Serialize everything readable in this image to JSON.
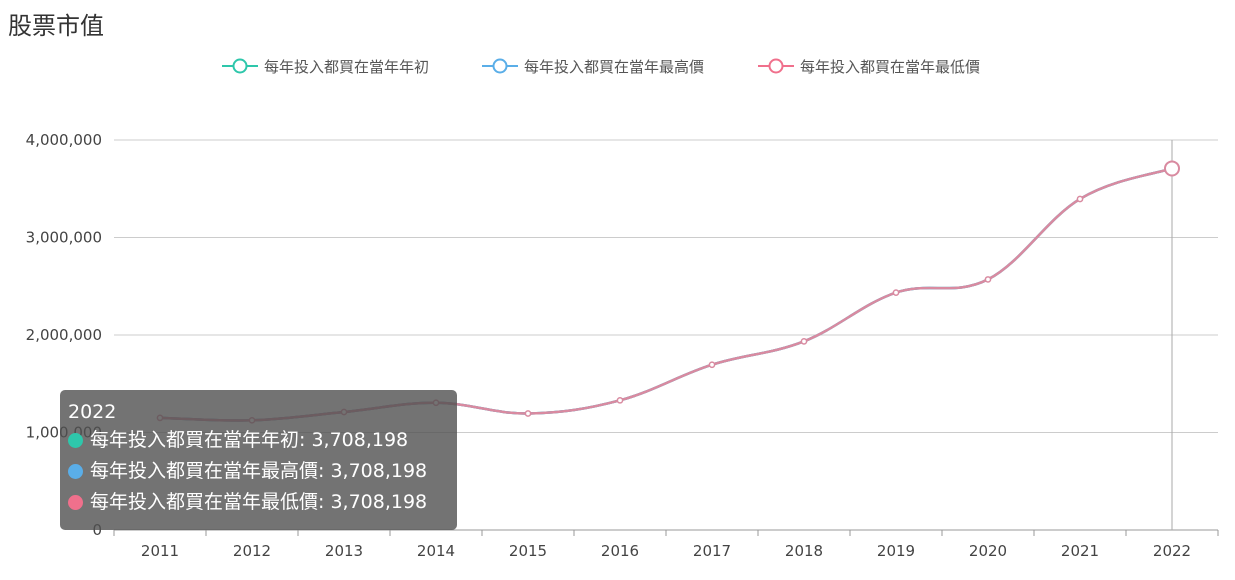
{
  "page_title": "股票市值",
  "colors": {
    "series_start": "#2ec7ab",
    "series_high": "#5aaee8",
    "series_low": "#f0708c",
    "line_visible": "#d98aa0",
    "grid": "#cccccc",
    "crosshair": "#aaaaaa"
  },
  "chart_data": {
    "type": "line",
    "title": "股票市值",
    "xlabel": "",
    "ylabel": "",
    "categories": [
      "2011",
      "2012",
      "2013",
      "2014",
      "2015",
      "2016",
      "2017",
      "2018",
      "2019",
      "2020",
      "2021",
      "2022"
    ],
    "ylim": [
      0,
      4000000
    ],
    "y_ticks": [
      0,
      1000000,
      2000000,
      3000000,
      4000000
    ],
    "y_tick_labels": [
      "0",
      "1,000,000",
      "2,000,000",
      "3,000,000",
      "4,000,000"
    ],
    "grid": true,
    "legend_position": "top-center",
    "series": [
      {
        "name": "每年投入都買在當年年初",
        "values": [
          1150000,
          1125000,
          1210000,
          1305000,
          1195000,
          1330000,
          1695000,
          1935000,
          2435000,
          2570000,
          3395000,
          3708198
        ]
      },
      {
        "name": "每年投入都買在當年最高價",
        "values": [
          1150000,
          1125000,
          1210000,
          1305000,
          1195000,
          1330000,
          1695000,
          1935000,
          2435000,
          2570000,
          3395000,
          3708198
        ]
      },
      {
        "name": "每年投入都買在當年最低價",
        "values": [
          1150000,
          1125000,
          1210000,
          1305000,
          1195000,
          1330000,
          1695000,
          1935000,
          2435000,
          2570000,
          3395000,
          3708198
        ]
      }
    ],
    "highlight_index": 11
  },
  "tooltip": {
    "title": "2022",
    "rows": [
      {
        "label": "每年投入都買在當年年初: 3,708,198",
        "color": "#2ec7ab"
      },
      {
        "label": "每年投入都買在當年最高價: 3,708,198",
        "color": "#5aaee8"
      },
      {
        "label": "每年投入都買在當年最低價: 3,708,198",
        "color": "#f0708c"
      }
    ]
  }
}
